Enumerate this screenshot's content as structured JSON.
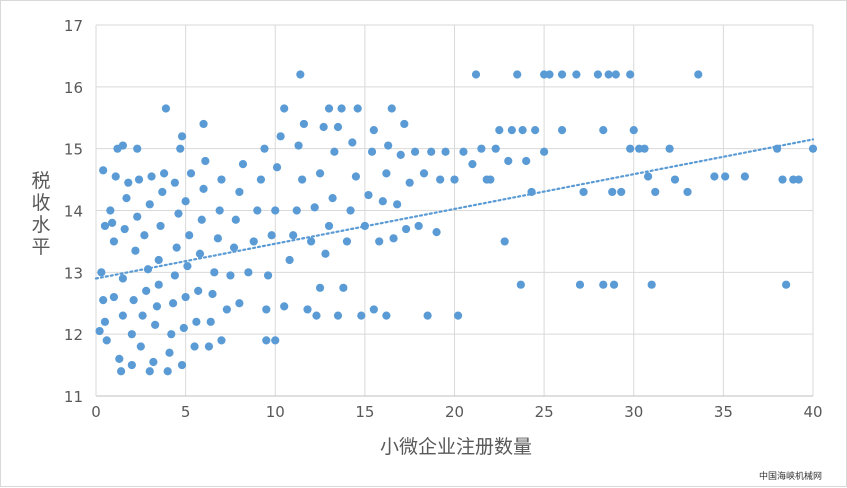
{
  "chart_data": {
    "type": "scatter",
    "title": "",
    "xlabel": "小微企业注册数量",
    "ylabel": "税收水平",
    "xlim": [
      0,
      40
    ],
    "ylim": [
      11,
      17
    ],
    "x_ticks": [
      "0",
      "5",
      "10",
      "15",
      "20",
      "25",
      "30",
      "35",
      "40"
    ],
    "y_ticks": [
      "11",
      "12",
      "13",
      "14",
      "15",
      "16",
      "17"
    ],
    "grid": true,
    "legend": "none",
    "marker_color": "#5b9bd5",
    "trendline": {
      "type": "linear",
      "style": "dotted",
      "from": [
        0,
        12.9
      ],
      "to": [
        40,
        15.15
      ]
    },
    "series": [
      {
        "points": [
          [
            0.2,
            12.05
          ],
          [
            0.4,
            12.55
          ],
          [
            0.3,
            13.0
          ],
          [
            0.5,
            13.75
          ],
          [
            0.4,
            14.65
          ],
          [
            0.6,
            11.9
          ],
          [
            0.5,
            12.2
          ],
          [
            0.8,
            14.0
          ],
          [
            0.9,
            13.8
          ],
          [
            1.0,
            12.6
          ],
          [
            1.0,
            13.5
          ],
          [
            1.1,
            14.55
          ],
          [
            1.2,
            15.0
          ],
          [
            1.3,
            11.6
          ],
          [
            1.4,
            11.4
          ],
          [
            1.5,
            12.3
          ],
          [
            1.5,
            12.9
          ],
          [
            1.6,
            13.7
          ],
          [
            1.7,
            14.2
          ],
          [
            1.8,
            14.45
          ],
          [
            1.5,
            15.05
          ],
          [
            2.0,
            11.5
          ],
          [
            2.0,
            12.0
          ],
          [
            2.1,
            12.55
          ],
          [
            2.2,
            13.35
          ],
          [
            2.3,
            13.9
          ],
          [
            2.4,
            14.5
          ],
          [
            2.3,
            15.0
          ],
          [
            2.5,
            11.8
          ],
          [
            2.6,
            12.3
          ],
          [
            2.8,
            12.7
          ],
          [
            2.9,
            13.05
          ],
          [
            2.7,
            13.6
          ],
          [
            3.0,
            14.1
          ],
          [
            3.1,
            14.55
          ],
          [
            3.0,
            11.4
          ],
          [
            3.2,
            11.55
          ],
          [
            3.3,
            12.15
          ],
          [
            3.4,
            12.45
          ],
          [
            3.5,
            12.8
          ],
          [
            3.5,
            13.2
          ],
          [
            3.6,
            13.75
          ],
          [
            3.7,
            14.3
          ],
          [
            3.8,
            14.6
          ],
          [
            3.9,
            15.65
          ],
          [
            4.0,
            11.4
          ],
          [
            4.1,
            11.7
          ],
          [
            4.2,
            12.0
          ],
          [
            4.3,
            12.5
          ],
          [
            4.4,
            12.95
          ],
          [
            4.5,
            13.4
          ],
          [
            4.6,
            13.95
          ],
          [
            4.4,
            14.45
          ],
          [
            4.7,
            15.0
          ],
          [
            4.8,
            11.5
          ],
          [
            4.9,
            12.1
          ],
          [
            5.0,
            12.6
          ],
          [
            5.1,
            13.1
          ],
          [
            5.2,
            13.6
          ],
          [
            5.0,
            14.15
          ],
          [
            5.3,
            14.6
          ],
          [
            4.8,
            15.2
          ],
          [
            5.5,
            11.8
          ],
          [
            5.6,
            12.2
          ],
          [
            5.7,
            12.7
          ],
          [
            5.8,
            13.3
          ],
          [
            5.9,
            13.85
          ],
          [
            6.0,
            14.35
          ],
          [
            6.1,
            14.8
          ],
          [
            6.0,
            15.4
          ],
          [
            6.3,
            11.8
          ],
          [
            6.4,
            12.2
          ],
          [
            6.5,
            12.65
          ],
          [
            6.6,
            13.0
          ],
          [
            6.8,
            13.55
          ],
          [
            6.9,
            14.0
          ],
          [
            7.0,
            14.5
          ],
          [
            7.0,
            11.9
          ],
          [
            7.3,
            12.4
          ],
          [
            7.5,
            12.95
          ],
          [
            7.7,
            13.4
          ],
          [
            7.8,
            13.85
          ],
          [
            8.0,
            14.3
          ],
          [
            8.2,
            14.75
          ],
          [
            8.0,
            12.5
          ],
          [
            8.5,
            13.0
          ],
          [
            8.8,
            13.5
          ],
          [
            9.0,
            14.0
          ],
          [
            9.2,
            14.5
          ],
          [
            9.4,
            15.0
          ],
          [
            9.5,
            12.4
          ],
          [
            9.6,
            12.95
          ],
          [
            9.8,
            13.6
          ],
          [
            10.0,
            14.0
          ],
          [
            10.1,
            14.7
          ],
          [
            10.3,
            15.2
          ],
          [
            10.5,
            15.65
          ],
          [
            10.0,
            11.9
          ],
          [
            9.5,
            11.9
          ],
          [
            10.5,
            12.45
          ],
          [
            10.8,
            13.2
          ],
          [
            11.0,
            13.6
          ],
          [
            11.2,
            14.0
          ],
          [
            11.5,
            14.5
          ],
          [
            11.3,
            15.05
          ],
          [
            11.6,
            15.4
          ],
          [
            11.4,
            16.2
          ],
          [
            11.8,
            12.4
          ],
          [
            12.0,
            13.5
          ],
          [
            12.2,
            14.05
          ],
          [
            12.5,
            14.6
          ],
          [
            12.7,
            15.35
          ],
          [
            13.0,
            15.65
          ],
          [
            12.3,
            12.3
          ],
          [
            12.5,
            12.75
          ],
          [
            12.8,
            13.3
          ],
          [
            13.0,
            13.75
          ],
          [
            13.2,
            14.2
          ],
          [
            13.3,
            14.95
          ],
          [
            13.5,
            15.35
          ],
          [
            13.7,
            15.65
          ],
          [
            13.5,
            12.3
          ],
          [
            13.8,
            12.75
          ],
          [
            14.0,
            13.5
          ],
          [
            14.2,
            14.0
          ],
          [
            14.5,
            14.55
          ],
          [
            14.3,
            15.1
          ],
          [
            14.6,
            15.65
          ],
          [
            14.8,
            12.3
          ],
          [
            15.0,
            13.75
          ],
          [
            15.2,
            14.25
          ],
          [
            15.4,
            14.95
          ],
          [
            15.5,
            15.3
          ],
          [
            15.5,
            12.4
          ],
          [
            15.8,
            13.5
          ],
          [
            16.0,
            14.15
          ],
          [
            16.2,
            14.6
          ],
          [
            16.3,
            15.05
          ],
          [
            16.5,
            15.65
          ],
          [
            16.2,
            12.3
          ],
          [
            16.6,
            13.55
          ],
          [
            16.8,
            14.1
          ],
          [
            17.0,
            14.9
          ],
          [
            17.2,
            15.4
          ],
          [
            17.3,
            13.7
          ],
          [
            17.5,
            14.45
          ],
          [
            17.8,
            14.95
          ],
          [
            18.0,
            13.75
          ],
          [
            18.3,
            14.6
          ],
          [
            18.5,
            12.3
          ],
          [
            18.7,
            14.95
          ],
          [
            19.0,
            13.65
          ],
          [
            19.2,
            14.5
          ],
          [
            19.5,
            14.95
          ],
          [
            20.0,
            14.5
          ],
          [
            20.2,
            12.3
          ],
          [
            20.5,
            14.95
          ],
          [
            21.0,
            14.75
          ],
          [
            21.2,
            16.2
          ],
          [
            21.5,
            15.0
          ],
          [
            21.8,
            14.5
          ],
          [
            22.0,
            14.5
          ],
          [
            22.3,
            15.0
          ],
          [
            22.5,
            15.3
          ],
          [
            22.8,
            13.5
          ],
          [
            23.0,
            14.8
          ],
          [
            23.2,
            15.3
          ],
          [
            23.5,
            16.2
          ],
          [
            23.7,
            12.8
          ],
          [
            23.8,
            15.3
          ],
          [
            24.0,
            14.8
          ],
          [
            24.3,
            14.3
          ],
          [
            24.5,
            15.3
          ],
          [
            25.0,
            16.2
          ],
          [
            25.0,
            14.95
          ],
          [
            25.3,
            16.2
          ],
          [
            26.0,
            15.3
          ],
          [
            26.0,
            16.2
          ],
          [
            26.8,
            16.2
          ],
          [
            27.0,
            12.8
          ],
          [
            27.2,
            14.3
          ],
          [
            28.0,
            16.2
          ],
          [
            28.3,
            15.3
          ],
          [
            28.3,
            12.8
          ],
          [
            28.6,
            16.2
          ],
          [
            28.8,
            14.3
          ],
          [
            28.9,
            12.8
          ],
          [
            29.0,
            16.2
          ],
          [
            29.3,
            14.3
          ],
          [
            29.8,
            16.2
          ],
          [
            29.8,
            15.0
          ],
          [
            30.0,
            15.3
          ],
          [
            30.3,
            15.0
          ],
          [
            30.6,
            15.0
          ],
          [
            30.8,
            14.55
          ],
          [
            31.0,
            12.8
          ],
          [
            31.2,
            14.3
          ],
          [
            32.0,
            15.0
          ],
          [
            32.3,
            14.5
          ],
          [
            33.0,
            14.3
          ],
          [
            33.6,
            16.2
          ],
          [
            34.5,
            14.55
          ],
          [
            35.1,
            14.55
          ],
          [
            36.2,
            14.55
          ],
          [
            38.0,
            15.0
          ],
          [
            38.3,
            14.5
          ],
          [
            38.5,
            12.8
          ],
          [
            38.9,
            14.5
          ],
          [
            39.2,
            14.5
          ],
          [
            40.0,
            15.0
          ]
        ]
      }
    ]
  },
  "watermark": "中国海峡机械网"
}
